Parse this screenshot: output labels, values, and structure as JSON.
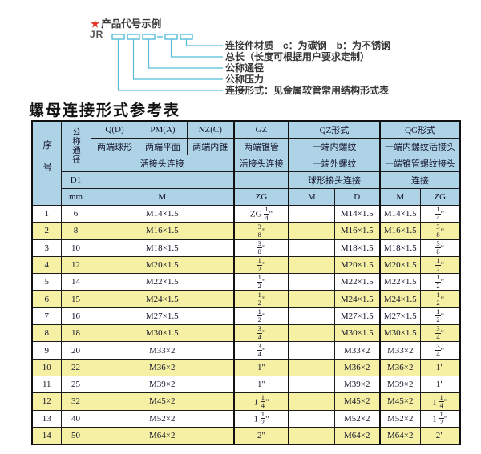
{
  "colors": {
    "header_blue": "#aed3e6",
    "row_yellow": "#f5f0a3",
    "line_cyan": "#56bdd8",
    "star_red": "#e53522"
  },
  "diagram": {
    "star": "★",
    "title": "产品代号示例",
    "code_prefix": "JR",
    "labels": [
      "连接件材质　c：为碳钢　b：为不锈钢",
      "总长（长度可根据用户要求定制）",
      "公称通径",
      "公称压力",
      "连接形式：见金属软管常用结构形式表"
    ]
  },
  "table_title": "螺母连接形式参考表",
  "table": {
    "header": {
      "seq": "序号",
      "nominal_diameter": "公称通径",
      "d1": "D1",
      "mm": "mm",
      "col_q": "Q(D)",
      "col_pm": "PM(A)",
      "col_nz": "NZ(C)",
      "col_gz": "GZ",
      "col_qz": "QZ形式",
      "col_qg": "QG形式",
      "q_desc": "两端球形",
      "pm_desc": "两端平面",
      "nz_desc": "两端内锥",
      "gz_desc": "两端锥管",
      "qz_desc": "一端内螺纹",
      "qg_desc": "一端内螺纹活接头",
      "union_conn": "活接头连接",
      "gz_conn": "活接头连接",
      "qz_conn2": "一端外螺纹",
      "qg_conn2": "一端锥管螺纹接头",
      "qz_ball_conn": "球形接头连接",
      "qg_link": "连接",
      "m_label": "M",
      "zg_label": "ZG",
      "qz_m": "M",
      "qz_d": "D",
      "qg_m": "M",
      "qg_zg": "ZG"
    },
    "rows": [
      [
        "1",
        "6",
        "M14×1.5",
        "ZG 1/4\"",
        "",
        "M14×1.5",
        "M14×1.5",
        "1/4\""
      ],
      [
        "2",
        "8",
        "M16×1.5",
        "3/8\"",
        "",
        "M16×1.5",
        "M16×1.5",
        "3/8\""
      ],
      [
        "3",
        "10",
        "M18×1.5",
        "3/8\"",
        "",
        "M18×1.5",
        "M18×1.5",
        "3/8\""
      ],
      [
        "4",
        "12",
        "M20×1.5",
        "1/2\"",
        "",
        "M20×1.5",
        "M20×1.5",
        "1/2\""
      ],
      [
        "5",
        "14",
        "M22×1.5",
        "1/2\"",
        "",
        "M22×1.5",
        "M22×1.5",
        "1/2\""
      ],
      [
        "6",
        "15",
        "M24×1.5",
        "1/2\"",
        "",
        "M24×1.5",
        "M24×1.5",
        "1/2\""
      ],
      [
        "7",
        "16",
        "M27×1.5",
        "1/2\"",
        "",
        "M27×1.5",
        "M27×1.5",
        "1/2\""
      ],
      [
        "8",
        "18",
        "M30×1.5",
        "3/4\"",
        "",
        "M30×1.5",
        "M30×1.5",
        "3/4\""
      ],
      [
        "9",
        "20",
        "M33×2",
        "3/4\"",
        "",
        "M33×2",
        "M33×2",
        "3/4\""
      ],
      [
        "10",
        "22",
        "M36×2",
        "1\"",
        "",
        "M36×2",
        "M36×2",
        "1\""
      ],
      [
        "11",
        "25",
        "M39×2",
        "1\"",
        "",
        "M39×2",
        "M39×2",
        "1\""
      ],
      [
        "12",
        "32",
        "M45×2",
        "1 1/4\"",
        "",
        "M45×2",
        "M45×2",
        "1 1/4\""
      ],
      [
        "13",
        "40",
        "M52×2",
        "1 1/2\"",
        "",
        "M52×2",
        "M52×2",
        "1 1/2\""
      ],
      [
        "14",
        "50",
        "M64×2",
        "2\"",
        "",
        "M64×2",
        "M64×2",
        "2\""
      ]
    ]
  }
}
